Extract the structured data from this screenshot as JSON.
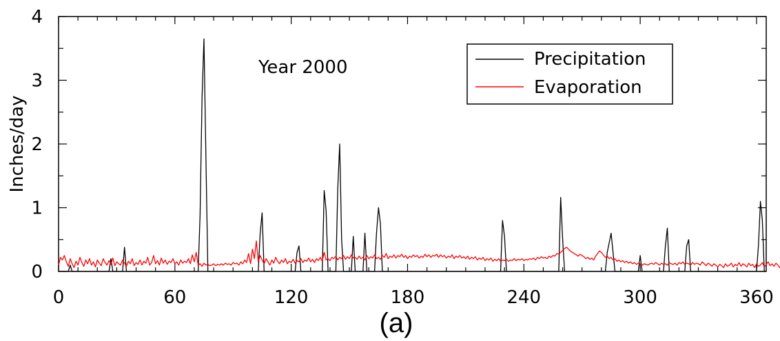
{
  "chart_data": {
    "type": "line",
    "title": "",
    "annotation": "Year 2000",
    "caption": "(a)",
    "xlabel": "",
    "ylabel": "Inches/day",
    "xlim": [
      0,
      365
    ],
    "ylim": [
      0,
      4
    ],
    "x_ticks": [
      0,
      60,
      120,
      180,
      240,
      300,
      360
    ],
    "y_ticks": [
      0,
      1,
      2,
      3,
      4
    ],
    "grid": false,
    "legend_position": "top-right",
    "series": [
      {
        "name": "Precipitation",
        "color": "#000000",
        "points": [
          [
            0,
            0
          ],
          [
            5,
            0
          ],
          [
            6,
            0.1
          ],
          [
            7,
            0
          ],
          [
            26,
            0
          ],
          [
            27,
            0.2
          ],
          [
            28,
            0
          ],
          [
            33,
            0
          ],
          [
            34,
            0.38
          ],
          [
            35,
            0
          ],
          [
            72,
            0
          ],
          [
            73,
            0.9
          ],
          [
            74,
            2.72
          ],
          [
            75,
            3.65
          ],
          [
            76,
            1.82
          ],
          [
            77,
            0
          ],
          [
            103,
            0
          ],
          [
            104,
            0.6
          ],
          [
            105,
            0.92
          ],
          [
            106,
            0
          ],
          [
            122,
            0
          ],
          [
            123,
            0.3
          ],
          [
            124,
            0.4
          ],
          [
            125,
            0
          ],
          [
            136,
            0
          ],
          [
            137,
            1.27
          ],
          [
            138,
            0.95
          ],
          [
            139,
            0
          ],
          [
            143,
            0
          ],
          [
            144,
            1.3
          ],
          [
            145,
            2.0
          ],
          [
            146,
            0.5
          ],
          [
            147,
            0
          ],
          [
            151,
            0
          ],
          [
            152,
            0.55
          ],
          [
            153,
            0
          ],
          [
            157,
            0
          ],
          [
            158,
            0.6
          ],
          [
            159,
            0
          ],
          [
            163,
            0
          ],
          [
            164,
            0.6
          ],
          [
            165,
            1.0
          ],
          [
            166,
            0.75
          ],
          [
            167,
            0
          ],
          [
            228,
            0
          ],
          [
            229,
            0.8
          ],
          [
            230,
            0.55
          ],
          [
            231,
            0
          ],
          [
            258,
            0
          ],
          [
            259,
            1.16
          ],
          [
            260,
            0.5
          ],
          [
            261,
            0
          ],
          [
            282,
            0
          ],
          [
            283,
            0.3
          ],
          [
            284,
            0.45
          ],
          [
            285,
            0.6
          ],
          [
            286,
            0.3
          ],
          [
            287,
            0
          ],
          [
            299,
            0
          ],
          [
            300,
            0.25
          ],
          [
            301,
            0
          ],
          [
            312,
            0
          ],
          [
            313,
            0.4
          ],
          [
            314,
            0.68
          ],
          [
            315,
            0
          ],
          [
            323,
            0
          ],
          [
            324,
            0.4
          ],
          [
            325,
            0.5
          ],
          [
            326,
            0
          ],
          [
            360,
            0
          ],
          [
            361,
            0.4
          ],
          [
            362,
            1.1
          ],
          [
            363,
            0.8
          ],
          [
            364,
            0
          ]
        ]
      },
      {
        "name": "Evaporation",
        "color": "#ff0000",
        "values": [
          0.1,
          0.22,
          0.18,
          0.25,
          0.15,
          0.08,
          0.2,
          0.12,
          0.06,
          0.16,
          0.1,
          0.22,
          0.14,
          0.08,
          0.18,
          0.12,
          0.2,
          0.1,
          0.15,
          0.07,
          0.18,
          0.13,
          0.09,
          0.2,
          0.14,
          0.1,
          0.17,
          0.11,
          0.21,
          0.09,
          0.15,
          0.12,
          0.1,
          0.18,
          0.13,
          0.08,
          0.16,
          0.12,
          0.2,
          0.09,
          0.14,
          0.11,
          0.18,
          0.1,
          0.16,
          0.13,
          0.22,
          0.1,
          0.14,
          0.25,
          0.12,
          0.17,
          0.1,
          0.21,
          0.13,
          0.18,
          0.11,
          0.16,
          0.14,
          0.2,
          0.12,
          0.15,
          0.1,
          0.18,
          0.13,
          0.16,
          0.14,
          0.2,
          0.12,
          0.26,
          0.15,
          0.3,
          0.1,
          0.12,
          0.08,
          0.13,
          0.1,
          0.11,
          0.09,
          0.1,
          0.12,
          0.09,
          0.11,
          0.1,
          0.12,
          0.1,
          0.13,
          0.11,
          0.12,
          0.1,
          0.14,
          0.12,
          0.13,
          0.1,
          0.15,
          0.12,
          0.18,
          0.14,
          0.28,
          0.12,
          0.35,
          0.2,
          0.48,
          0.15,
          0.25,
          0.18,
          0.12,
          0.2,
          0.15,
          0.1,
          0.18,
          0.13,
          0.22,
          0.16,
          0.12,
          0.18,
          0.14,
          0.2,
          0.12,
          0.16,
          0.14,
          0.19,
          0.13,
          0.17,
          0.15,
          0.2,
          0.14,
          0.18,
          0.16,
          0.21,
          0.15,
          0.19,
          0.14,
          0.2,
          0.17,
          0.22,
          0.16,
          0.3,
          0.18,
          0.2,
          0.17,
          0.22,
          0.2,
          0.24,
          0.18,
          0.22,
          0.2,
          0.25,
          0.19,
          0.23,
          0.2,
          0.26,
          0.21,
          0.22,
          0.19,
          0.24,
          0.2,
          0.22,
          0.18,
          0.25,
          0.2,
          0.23,
          0.21,
          0.26,
          0.2,
          0.22,
          0.19,
          0.25,
          0.22,
          0.28,
          0.2,
          0.24,
          0.22,
          0.26,
          0.21,
          0.25,
          0.23,
          0.27,
          0.22,
          0.25,
          0.2,
          0.24,
          0.22,
          0.26,
          0.23,
          0.25,
          0.21,
          0.24,
          0.22,
          0.27,
          0.23,
          0.26,
          0.22,
          0.25,
          0.24,
          0.27,
          0.22,
          0.26,
          0.23,
          0.25,
          0.21,
          0.24,
          0.22,
          0.26,
          0.2,
          0.24,
          0.22,
          0.25,
          0.21,
          0.23,
          0.2,
          0.24,
          0.19,
          0.22,
          0.2,
          0.23,
          0.18,
          0.21,
          0.19,
          0.22,
          0.17,
          0.2,
          0.18,
          0.21,
          0.16,
          0.19,
          0.17,
          0.2,
          0.16,
          0.18,
          0.17,
          0.19,
          0.16,
          0.18,
          0.17,
          0.2,
          0.17,
          0.19,
          0.18,
          0.2,
          0.17,
          0.19,
          0.18,
          0.2,
          0.19,
          0.21,
          0.18,
          0.22,
          0.2,
          0.23,
          0.21,
          0.22,
          0.2,
          0.24,
          0.22,
          0.25,
          0.24,
          0.28,
          0.27,
          0.3,
          0.33,
          0.36,
          0.38,
          0.35,
          0.32,
          0.3,
          0.28,
          0.26,
          0.24,
          0.27,
          0.25,
          0.23,
          0.2,
          0.22,
          0.19,
          0.21,
          0.18,
          0.24,
          0.28,
          0.32,
          0.3,
          0.26,
          0.22,
          0.24,
          0.2,
          0.22,
          0.18,
          0.2,
          0.16,
          0.18,
          0.15,
          0.17,
          0.14,
          0.16,
          0.13,
          0.15,
          0.12,
          0.14,
          0.11,
          0.13,
          0.12,
          0.1,
          0.12,
          0.11,
          0.1,
          0.12,
          0.13,
          0.11,
          0.14,
          0.12,
          0.1,
          0.13,
          0.11,
          0.12,
          0.1,
          0.14,
          0.12,
          0.11,
          0.13,
          0.1,
          0.14,
          0.12,
          0.15,
          0.11,
          0.13,
          0.12,
          0.1,
          0.14,
          0.11,
          0.13,
          0.12,
          0.1,
          0.15,
          0.12,
          0.09,
          0.13,
          0.11,
          0.08,
          0.12,
          0.1,
          0.07,
          0.11,
          0.09,
          0.06,
          0.12,
          0.08,
          0.1,
          0.13,
          0.07,
          0.11,
          0.09,
          0.14,
          0.08,
          0.12,
          0.1,
          0.07,
          0.13,
          0.09,
          0.11,
          0.06,
          0.12,
          0.08,
          0.1,
          0.14,
          0.07,
          0.11,
          0.15,
          0.09,
          0.12,
          0.08,
          0.13,
          0.1,
          0.06,
          0.12,
          0.09,
          0.11,
          0.08,
          0.1
        ]
      }
    ]
  }
}
